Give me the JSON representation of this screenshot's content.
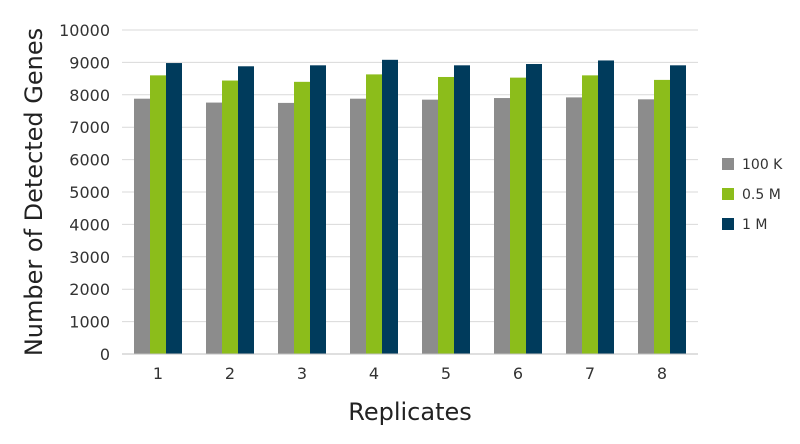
{
  "chart_data": {
    "type": "bar",
    "xlabel": "Replicates",
    "ylabel": "Number of Detected Genes",
    "ylim": [
      0,
      10000
    ],
    "yticks": [
      "0",
      "1000",
      "2000",
      "3000",
      "4000",
      "5000",
      "6000",
      "7000",
      "8000",
      "9000",
      "10000"
    ],
    "categories": [
      "1",
      "2",
      "3",
      "4",
      "5",
      "6",
      "7",
      "8"
    ],
    "grid": true,
    "legend_position": "right",
    "series": [
      {
        "name": "100 K",
        "color": "#8c8c8c",
        "values": [
          7880,
          7760,
          7750,
          7880,
          7850,
          7900,
          7920,
          7860
        ]
      },
      {
        "name": "0.5 M",
        "color": "#8cbd1b",
        "values": [
          8600,
          8440,
          8400,
          8630,
          8550,
          8530,
          8600,
          8460
        ]
      },
      {
        "name": "1 M",
        "color": "#003b5c",
        "values": [
          8980,
          8880,
          8910,
          9080,
          8910,
          8950,
          9060,
          8910
        ]
      }
    ]
  }
}
